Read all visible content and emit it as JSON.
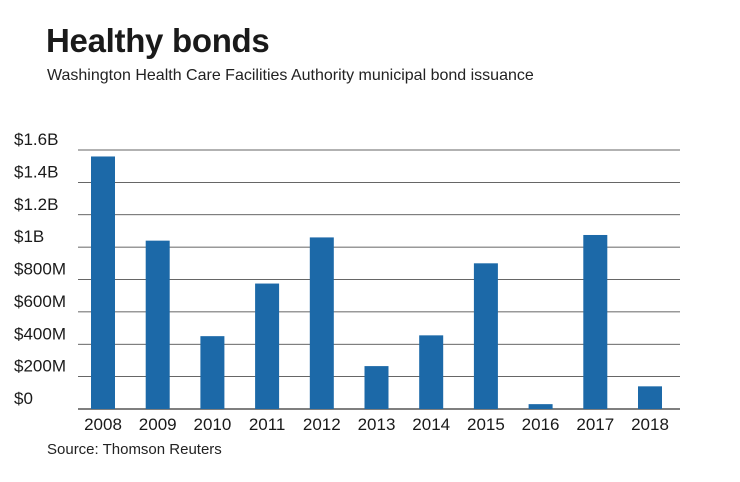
{
  "title": "Healthy bonds",
  "subtitle": "Washington Health Care Facilities Authority municipal bond issuance",
  "source": "Source: Thomson Reuters",
  "colors": {
    "bar": "#1c69a8",
    "grid": "#333333"
  },
  "chart_data": {
    "type": "bar",
    "categories": [
      "2008",
      "2009",
      "2010",
      "2011",
      "2012",
      "2013",
      "2014",
      "2015",
      "2016",
      "2017",
      "2018"
    ],
    "values": [
      1560,
      1040,
      450,
      775,
      1060,
      265,
      455,
      900,
      30,
      1075,
      140
    ],
    "unit": "millions USD",
    "ylim": [
      0,
      1600
    ],
    "yticks": [
      {
        "value": 0,
        "label": "$0"
      },
      {
        "value": 200,
        "label": "$200M"
      },
      {
        "value": 400,
        "label": "$400M"
      },
      {
        "value": 600,
        "label": "$600M"
      },
      {
        "value": 800,
        "label": "$800M"
      },
      {
        "value": 1000,
        "label": "$1B"
      },
      {
        "value": 1200,
        "label": "$1.2B"
      },
      {
        "value": 1400,
        "label": "$1.4B"
      },
      {
        "value": 1600,
        "label": "$1.6B"
      }
    ],
    "grid": true,
    "legend": "none"
  }
}
